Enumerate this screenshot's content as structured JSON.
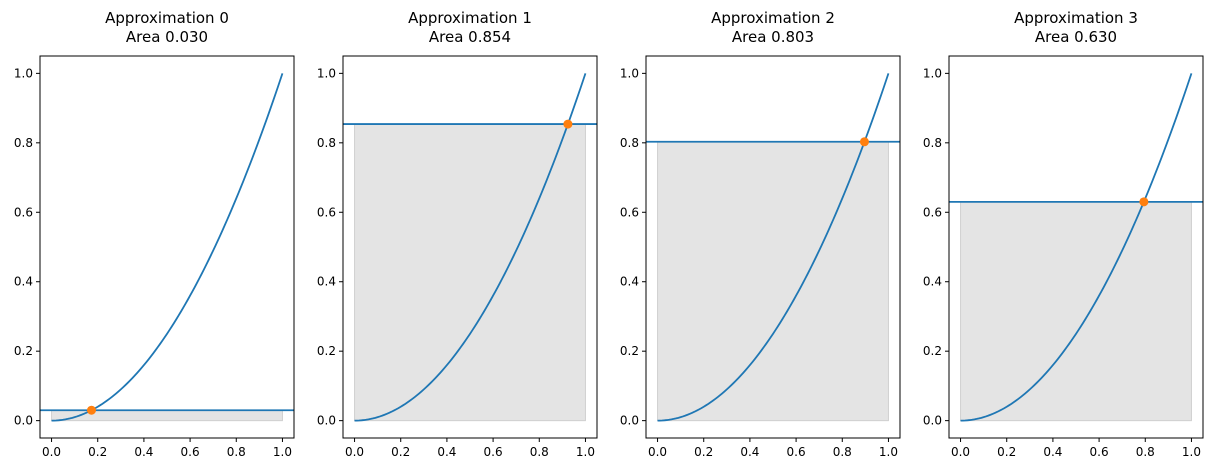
{
  "chart_data": [
    {
      "type": "line",
      "title": [
        "Approximation 0",
        "Area 0.030"
      ],
      "curve": "y = x^2",
      "x": [
        0,
        0.05,
        0.1,
        0.15,
        0.2,
        0.25,
        0.3,
        0.35,
        0.4,
        0.45,
        0.5,
        0.55,
        0.6,
        0.65,
        0.7,
        0.75,
        0.8,
        0.85,
        0.9,
        0.95,
        1.0
      ],
      "y": [
        0,
        0.0025,
        0.01,
        0.0225,
        0.04,
        0.0625,
        0.09,
        0.1225,
        0.16,
        0.2025,
        0.25,
        0.3025,
        0.36,
        0.4225,
        0.49,
        0.5625,
        0.64,
        0.7225,
        0.81,
        0.9025,
        1.0
      ],
      "hline_y": 0.03,
      "marker": {
        "x": 0.173,
        "y": 0.03
      },
      "shaded_rect": {
        "x0": 0,
        "x1": 1,
        "y0": 0,
        "y1": 0.03
      },
      "xlim": [
        -0.05,
        1.05
      ],
      "ylim": [
        -0.05,
        1.05
      ],
      "xticks": [
        "0.0",
        "0.2",
        "0.4",
        "0.6",
        "0.8",
        "1.0"
      ],
      "yticks": [
        "0.0",
        "0.2",
        "0.4",
        "0.6",
        "0.8",
        "1.0"
      ],
      "line_color": "#1f77b4",
      "marker_color": "#ff7f0e",
      "shade_color": "#e4e4e4",
      "grid": false
    },
    {
      "type": "line",
      "title": [
        "Approximation 1",
        "Area 0.854"
      ],
      "curve": "y = x^2",
      "x": [
        0,
        0.05,
        0.1,
        0.15,
        0.2,
        0.25,
        0.3,
        0.35,
        0.4,
        0.45,
        0.5,
        0.55,
        0.6,
        0.65,
        0.7,
        0.75,
        0.8,
        0.85,
        0.9,
        0.95,
        1.0
      ],
      "y": [
        0,
        0.0025,
        0.01,
        0.0225,
        0.04,
        0.0625,
        0.09,
        0.1225,
        0.16,
        0.2025,
        0.25,
        0.3025,
        0.36,
        0.4225,
        0.49,
        0.5625,
        0.64,
        0.7225,
        0.81,
        0.9025,
        1.0
      ],
      "hline_y": 0.854,
      "marker": {
        "x": 0.924,
        "y": 0.854
      },
      "shaded_rect": {
        "x0": 0,
        "x1": 1,
        "y0": 0,
        "y1": 0.854
      },
      "xlim": [
        -0.05,
        1.05
      ],
      "ylim": [
        -0.05,
        1.05
      ],
      "xticks": [
        "0.0",
        "0.2",
        "0.4",
        "0.6",
        "0.8",
        "1.0"
      ],
      "yticks": [
        "0.0",
        "0.2",
        "0.4",
        "0.6",
        "0.8",
        "1.0"
      ],
      "line_color": "#1f77b4",
      "marker_color": "#ff7f0e",
      "shade_color": "#e4e4e4",
      "grid": false
    },
    {
      "type": "line",
      "title": [
        "Approximation 2",
        "Area 0.803"
      ],
      "curve": "y = x^2",
      "x": [
        0,
        0.05,
        0.1,
        0.15,
        0.2,
        0.25,
        0.3,
        0.35,
        0.4,
        0.45,
        0.5,
        0.55,
        0.6,
        0.65,
        0.7,
        0.75,
        0.8,
        0.85,
        0.9,
        0.95,
        1.0
      ],
      "y": [
        0,
        0.0025,
        0.01,
        0.0225,
        0.04,
        0.0625,
        0.09,
        0.1225,
        0.16,
        0.2025,
        0.25,
        0.3025,
        0.36,
        0.4225,
        0.49,
        0.5625,
        0.64,
        0.7225,
        0.81,
        0.9025,
        1.0
      ],
      "hline_y": 0.803,
      "marker": {
        "x": 0.896,
        "y": 0.803
      },
      "shaded_rect": {
        "x0": 0,
        "x1": 1,
        "y0": 0,
        "y1": 0.803
      },
      "xlim": [
        -0.05,
        1.05
      ],
      "ylim": [
        -0.05,
        1.05
      ],
      "xticks": [
        "0.0",
        "0.2",
        "0.4",
        "0.6",
        "0.8",
        "1.0"
      ],
      "yticks": [
        "0.0",
        "0.2",
        "0.4",
        "0.6",
        "0.8",
        "1.0"
      ],
      "line_color": "#1f77b4",
      "marker_color": "#ff7f0e",
      "shade_color": "#e4e4e4",
      "grid": false
    },
    {
      "type": "line",
      "title": [
        "Approximation 3",
        "Area 0.630"
      ],
      "curve": "y = x^2",
      "x": [
        0,
        0.05,
        0.1,
        0.15,
        0.2,
        0.25,
        0.3,
        0.35,
        0.4,
        0.45,
        0.5,
        0.55,
        0.6,
        0.65,
        0.7,
        0.75,
        0.8,
        0.85,
        0.9,
        0.95,
        1.0
      ],
      "y": [
        0,
        0.0025,
        0.01,
        0.0225,
        0.04,
        0.0625,
        0.09,
        0.1225,
        0.16,
        0.2025,
        0.25,
        0.3025,
        0.36,
        0.4225,
        0.49,
        0.5625,
        0.64,
        0.7225,
        0.81,
        0.9025,
        1.0
      ],
      "hline_y": 0.63,
      "marker": {
        "x": 0.794,
        "y": 0.63
      },
      "shaded_rect": {
        "x0": 0,
        "x1": 1,
        "y0": 0,
        "y1": 0.63
      },
      "xlim": [
        -0.05,
        1.05
      ],
      "ylim": [
        -0.05,
        1.05
      ],
      "xticks": [
        "0.0",
        "0.2",
        "0.4",
        "0.6",
        "0.8",
        "1.0"
      ],
      "yticks": [
        "0.0",
        "0.2",
        "0.4",
        "0.6",
        "0.8",
        "1.0"
      ],
      "line_color": "#1f77b4",
      "marker_color": "#ff7f0e",
      "shade_color": "#e4e4e4",
      "grid": false
    }
  ]
}
